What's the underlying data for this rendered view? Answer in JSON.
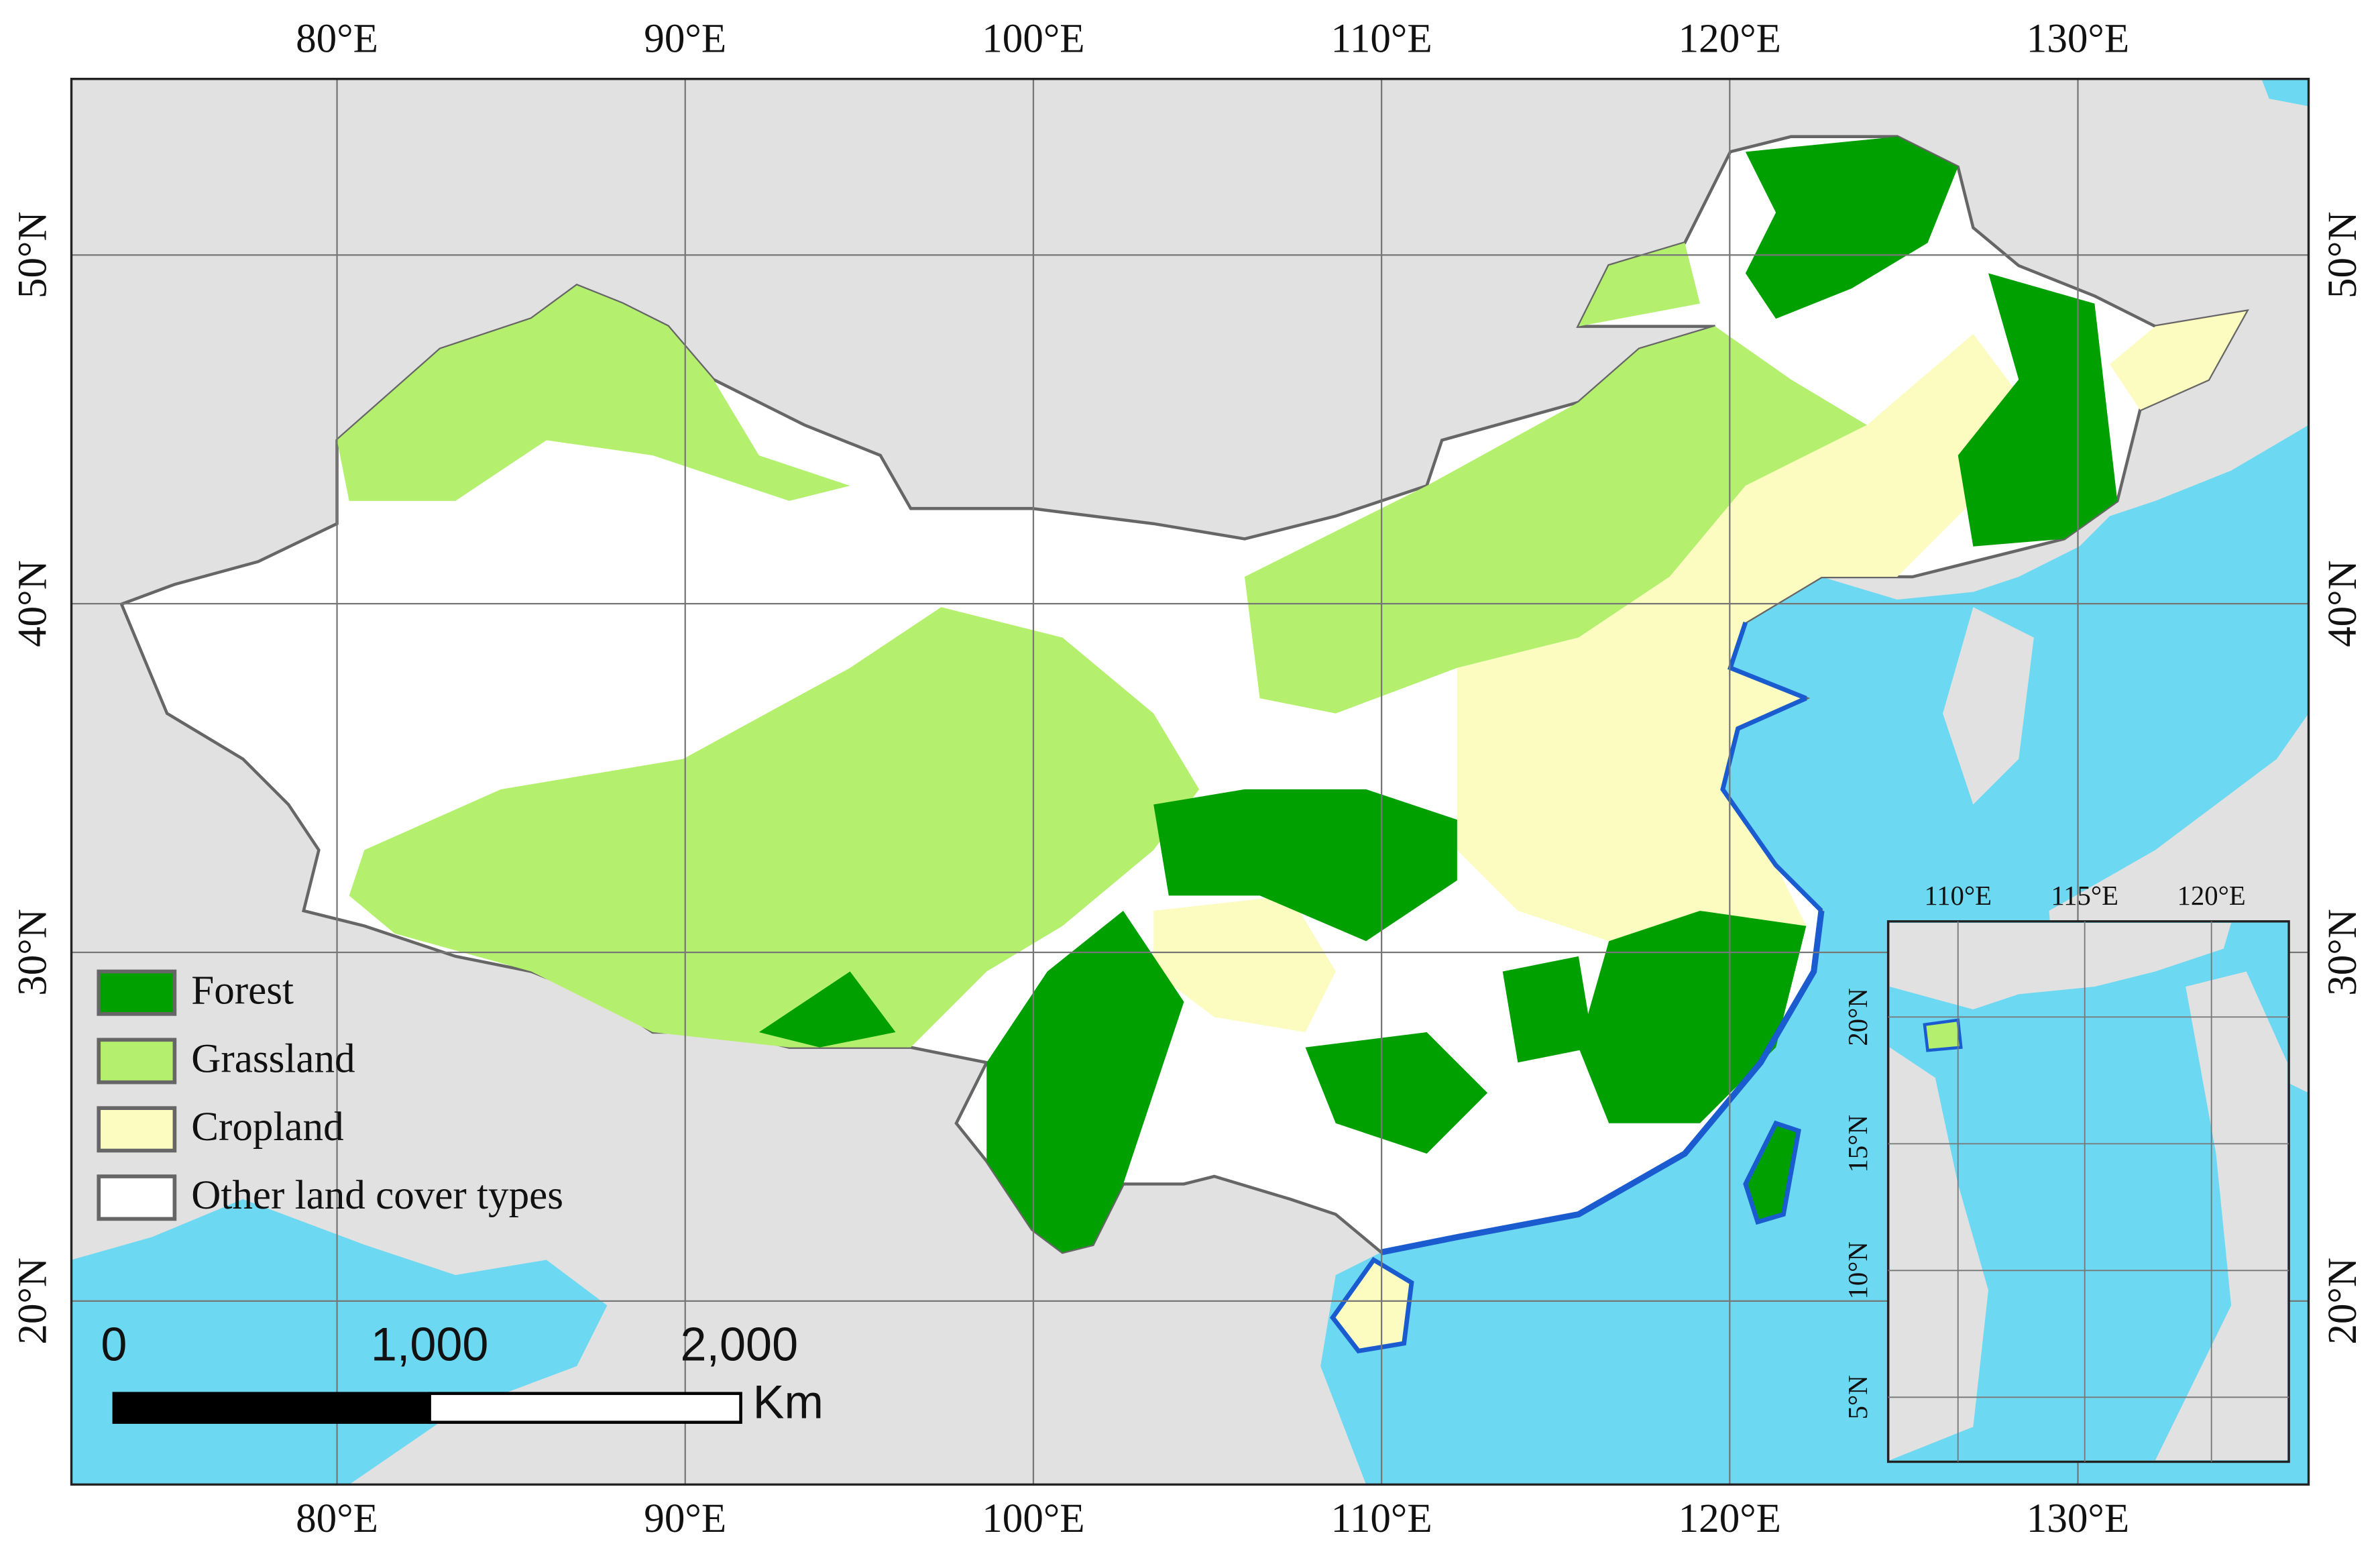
{
  "map": {
    "graticule": {
      "lon_labels": [
        "80°E",
        "90°E",
        "100°E",
        "110°E",
        "120°E",
        "130°E"
      ],
      "lat_labels": [
        "50°N",
        "40°N",
        "30°N",
        "20°N"
      ]
    },
    "inset": {
      "lon_labels": [
        "110°E",
        "115°E",
        "120°E"
      ],
      "lat_labels": [
        "20°N",
        "15°N",
        "10°N",
        "5°N"
      ]
    },
    "legend": [
      {
        "label": "Forest",
        "color": "#00a000"
      },
      {
        "label": "Grassland",
        "color": "#b4f06e"
      },
      {
        "label": "Cropland",
        "color": "#fcfcc0"
      },
      {
        "label": "Other land cover types",
        "color": "#ffffff"
      }
    ],
    "scale_bar": {
      "labels": [
        "0",
        "1,000",
        "2,000"
      ],
      "unit": "Km"
    }
  }
}
